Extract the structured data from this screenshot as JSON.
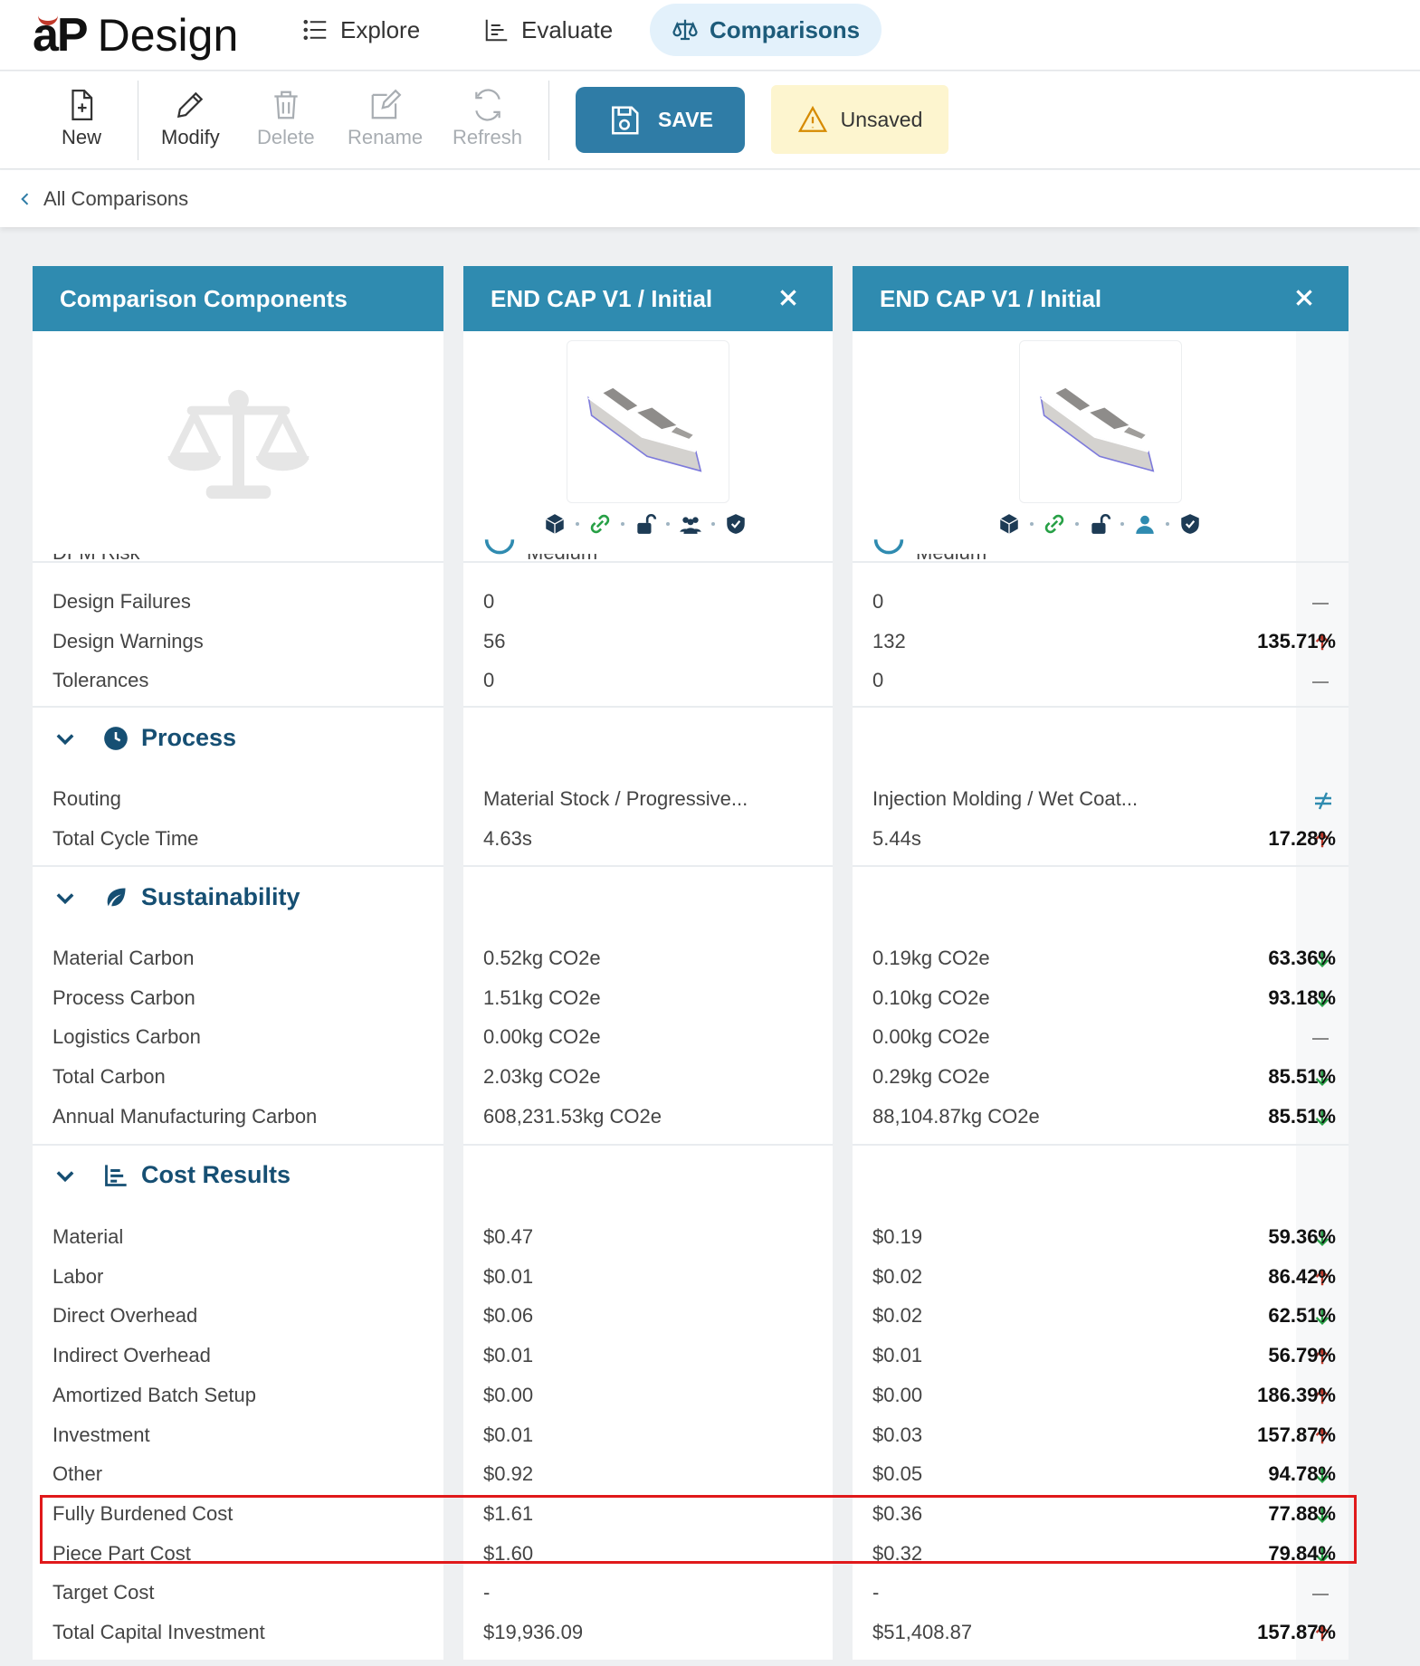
{
  "app": {
    "logo_mark": "aP",
    "logo_text": "Design"
  },
  "nav": {
    "tabs": [
      {
        "label": "Explore",
        "icon": "list-icon"
      },
      {
        "label": "Evaluate",
        "icon": "chart-icon"
      },
      {
        "label": "Comparisons",
        "icon": "scale-icon",
        "active": true
      }
    ]
  },
  "toolbar": {
    "new": "New",
    "modify": "Modify",
    "delete": "Delete",
    "rename": "Rename",
    "refresh": "Refresh",
    "save": "SAVE",
    "unsaved": "Unsaved"
  },
  "breadcrumb": {
    "label": "All Comparisons"
  },
  "columns": {
    "components": {
      "title": "Comparison Components"
    },
    "base": {
      "title": "END CAP V1 / Initial"
    },
    "compare": {
      "title": "END CAP V1 / Initial"
    }
  },
  "partial_row": {
    "label": "DFM Risk",
    "base": "Medium",
    "compare": "Medium"
  },
  "design": {
    "rows": [
      {
        "label": "Design Failures",
        "base": "0",
        "compare": "0",
        "trend": "none",
        "pct": ""
      },
      {
        "label": "Design Warnings",
        "base": "56",
        "compare": "132",
        "trend": "up",
        "pct": "135.71%"
      },
      {
        "label": "Tolerances",
        "base": "0",
        "compare": "0",
        "trend": "none",
        "pct": ""
      }
    ]
  },
  "process": {
    "title": "Process",
    "rows": [
      {
        "label": "Routing",
        "base": "Material Stock / Progressive...",
        "compare": "Injection Molding / Wet Coat...",
        "trend": "not-equal",
        "pct": ""
      },
      {
        "label": "Total Cycle Time",
        "base": "4.63s",
        "compare": "5.44s",
        "trend": "up",
        "pct": "17.28%"
      }
    ]
  },
  "sustainability": {
    "title": "Sustainability",
    "rows": [
      {
        "label": "Material Carbon",
        "base": "0.52kg CO2e",
        "compare": "0.19kg CO2e",
        "trend": "down",
        "pct": "63.36%"
      },
      {
        "label": "Process Carbon",
        "base": "1.51kg CO2e",
        "compare": "0.10kg CO2e",
        "trend": "down",
        "pct": "93.18%"
      },
      {
        "label": "Logistics Carbon",
        "base": "0.00kg CO2e",
        "compare": "0.00kg CO2e",
        "trend": "none",
        "pct": ""
      },
      {
        "label": "Total Carbon",
        "base": "2.03kg CO2e",
        "compare": "0.29kg CO2e",
        "trend": "down",
        "pct": "85.51%"
      },
      {
        "label": "Annual Manufacturing Carbon",
        "base": "608,231.53kg CO2e",
        "compare": "88,104.87kg CO2e",
        "trend": "down",
        "pct": "85.51%"
      }
    ]
  },
  "cost": {
    "title": "Cost Results",
    "rows": [
      {
        "label": "Material",
        "base": "$0.47",
        "compare": "$0.19",
        "trend": "down",
        "pct": "59.36%"
      },
      {
        "label": "Labor",
        "base": "$0.01",
        "compare": "$0.02",
        "trend": "up",
        "pct": "86.42%"
      },
      {
        "label": "Direct Overhead",
        "base": "$0.06",
        "compare": "$0.02",
        "trend": "down",
        "pct": "62.51%"
      },
      {
        "label": "Indirect Overhead",
        "base": "$0.01",
        "compare": "$0.01",
        "trend": "up",
        "pct": "56.79%"
      },
      {
        "label": "Amortized Batch Setup",
        "base": "$0.00",
        "compare": "$0.00",
        "trend": "up",
        "pct": "186.39%"
      },
      {
        "label": "Investment",
        "base": "$0.01",
        "compare": "$0.03",
        "trend": "up",
        "pct": "157.87%"
      },
      {
        "label": "Other",
        "base": "$0.92",
        "compare": "$0.05",
        "trend": "down",
        "pct": "94.78%"
      },
      {
        "label": "Fully Burdened Cost",
        "base": "$1.61",
        "compare": "$0.36",
        "trend": "down",
        "pct": "77.88%"
      },
      {
        "label": "Piece Part Cost",
        "base": "$1.60",
        "compare": "$0.32",
        "trend": "down",
        "pct": "79.84%"
      },
      {
        "label": "Target Cost",
        "base": "-",
        "compare": "-",
        "trend": "none",
        "pct": ""
      },
      {
        "label": "Total Capital Investment",
        "base": "$19,936.09",
        "compare": "$51,408.87",
        "trend": "up",
        "pct": "157.87%"
      }
    ]
  },
  "colors": {
    "header": "#2f8bb0",
    "up": "#c0392b",
    "down": "#27a046",
    "neq": "#2f8bb0",
    "accent": "#164f73"
  }
}
